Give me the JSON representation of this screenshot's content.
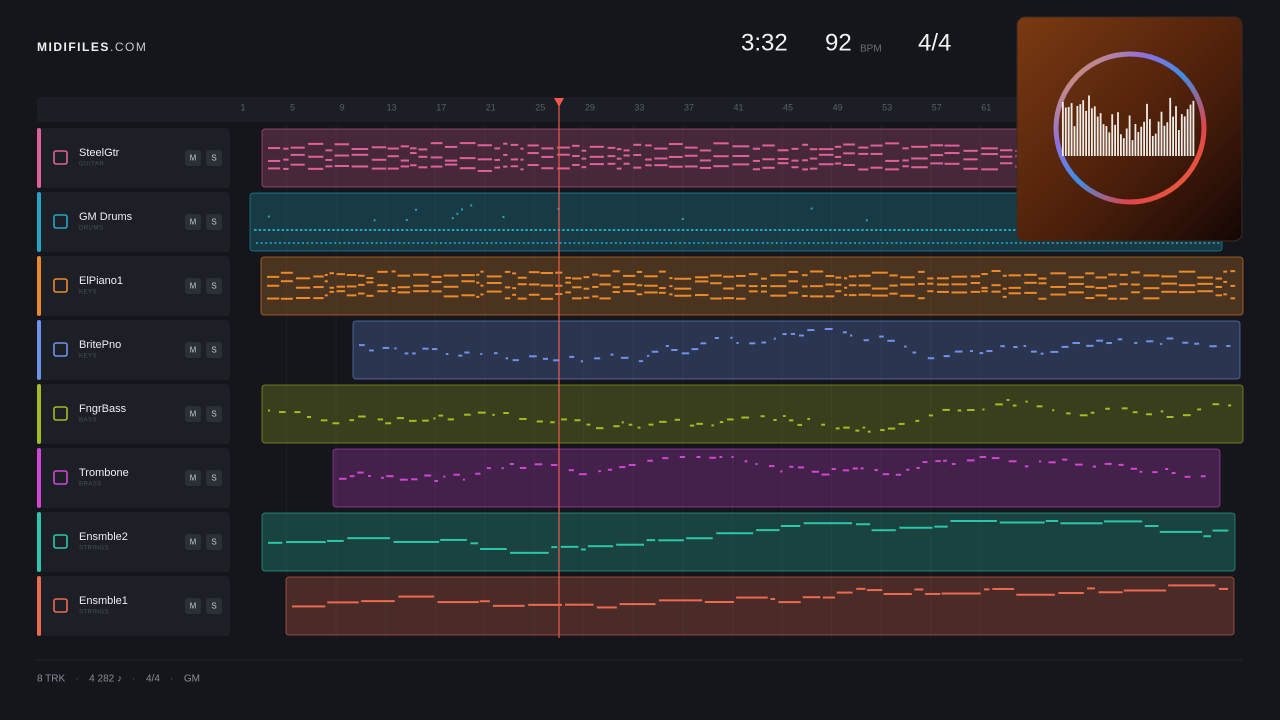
{
  "header": {
    "brand": "MIDIFILES",
    "brand_suffix": ".COM",
    "duration": "3:32",
    "tempo": "92",
    "tempo_unit": "BPM",
    "meter": "4/4"
  },
  "ruler": [
    "1",
    "5",
    "9",
    "13",
    "17",
    "21",
    "25",
    "29",
    "33",
    "37",
    "41",
    "45",
    "49",
    "53",
    "57",
    "61"
  ],
  "buttons": {
    "mute": "M",
    "solo": "S"
  },
  "tracks": [
    {
      "name": "SteelGtr",
      "category": "GUITAR",
      "color": "#e0619a"
    },
    {
      "name": "GM Drums",
      "category": "DRUMS",
      "color": "#22a6c4"
    },
    {
      "name": "ElPiano1",
      "category": "KEYS",
      "color": "#ec8a2a"
    },
    {
      "name": "BritePno",
      "category": "KEYS",
      "color": "#6f93ec"
    },
    {
      "name": "FngrBass",
      "category": "BASS",
      "color": "#a6bb22"
    },
    {
      "name": "Trombone",
      "category": "BRASS",
      "color": "#d245d6"
    },
    {
      "name": "Ensmble2",
      "category": "STRINGS",
      "color": "#2cc7aa"
    },
    {
      "name": "Ensmble1",
      "category": "STRINGS",
      "color": "#ec6a50"
    }
  ],
  "footer": {
    "items": [
      "8 TRK",
      "4 282 ♪",
      "4/4",
      "GM"
    ],
    "separator": "·"
  }
}
